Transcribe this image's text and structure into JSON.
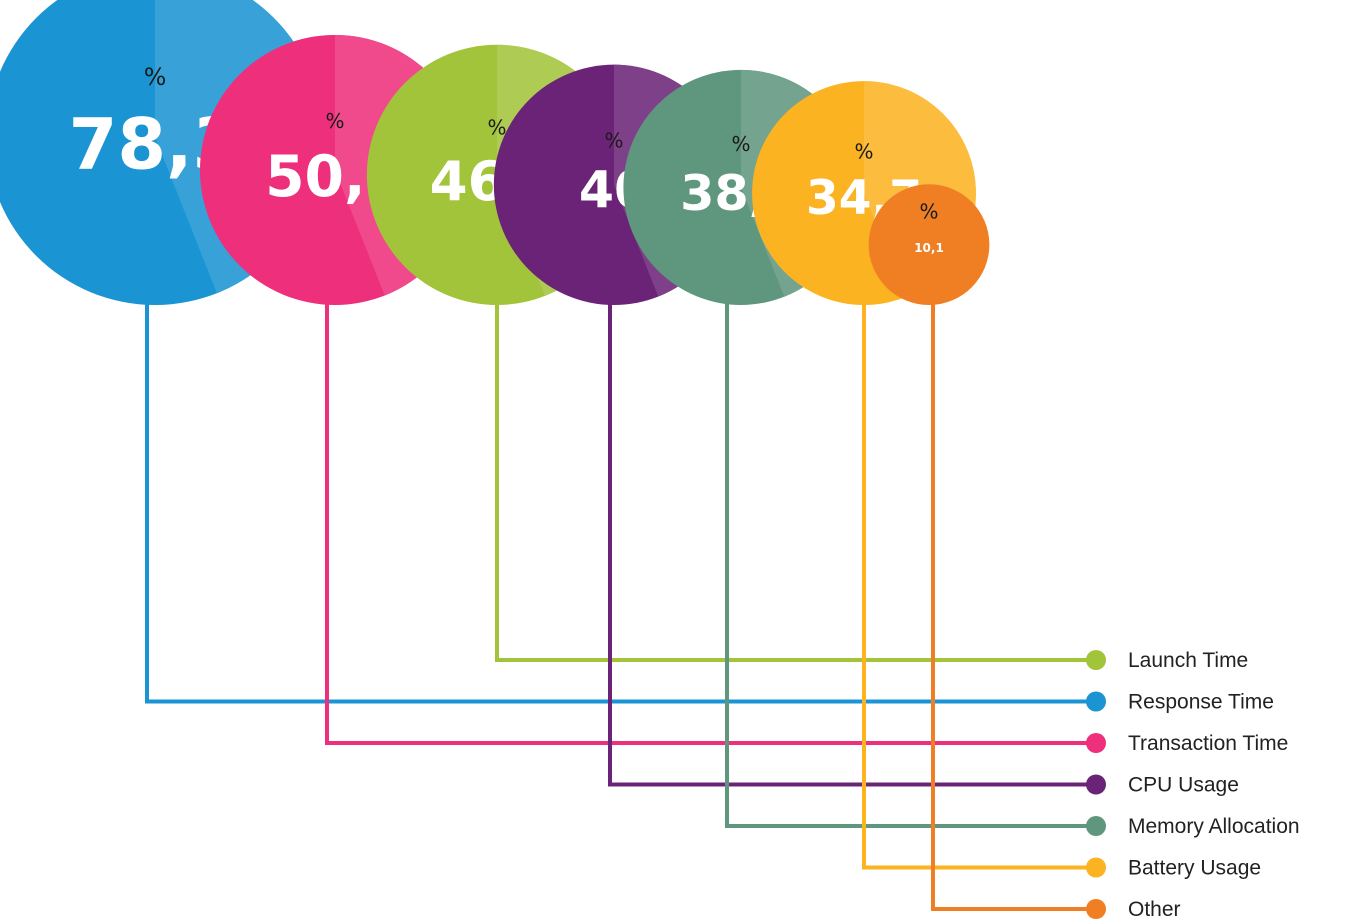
{
  "chart_data": {
    "type": "bubble",
    "percent_symbol": "%",
    "series": [
      {
        "name": "Response Time",
        "value": 78.3,
        "label": "78,3",
        "color": "#1a94d2"
      },
      {
        "name": "Transaction Time",
        "value": 50.5,
        "label": "50,5",
        "color": "#ee2f7c"
      },
      {
        "name": "Launch Time",
        "value": 46.9,
        "label": "46,9",
        "color": "#a2c43a"
      },
      {
        "name": "CPU Usage",
        "value": 40,
        "label": "40",
        "color": "#6b2377"
      },
      {
        "name": "Memory Allocation",
        "value": 38.3,
        "label": "38,3",
        "color": "#5f967e"
      },
      {
        "name": "Battery Usage",
        "value": 34.7,
        "label": "34,7",
        "color": "#fbb321"
      },
      {
        "name": "Other",
        "value": 10.1,
        "label": "10,1",
        "color": "#f07f24"
      }
    ],
    "legend_order": [
      "Launch Time",
      "Response Time",
      "Transaction Time",
      "CPU Usage",
      "Memory Allocation",
      "Battery Usage",
      "Other"
    ],
    "legend_position": "bottom-right"
  }
}
